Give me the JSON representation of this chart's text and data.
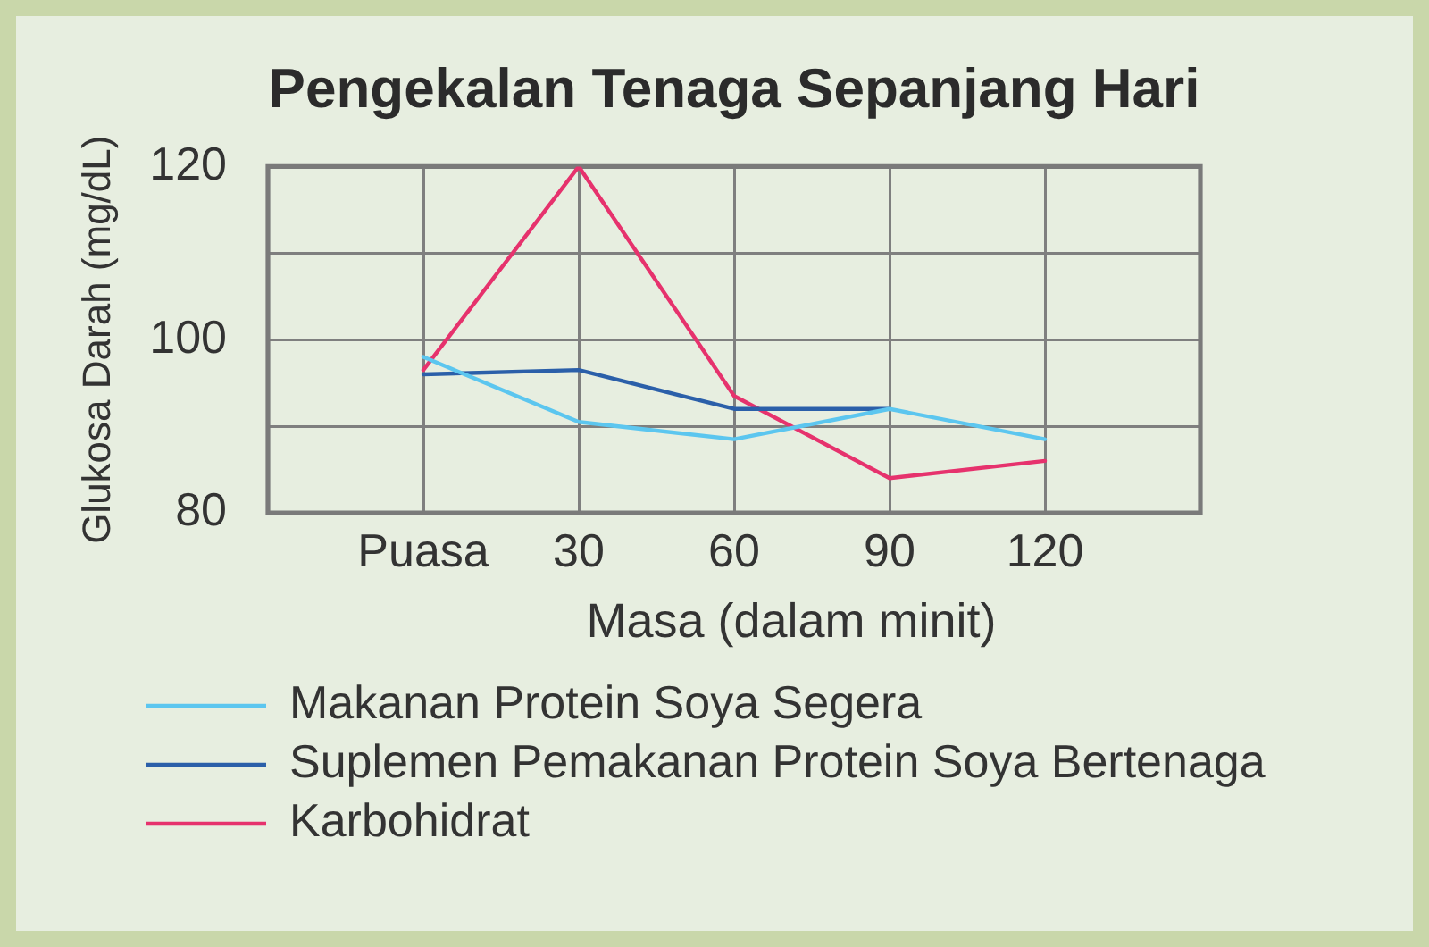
{
  "chart_data": {
    "type": "line",
    "title": "Pengekalan Tenaga Sepanjang Hari",
    "xlabel": "Masa (dalam minit)",
    "ylabel": "Glukosa Darah (mg/dL)",
    "x": [
      0,
      30,
      60,
      90,
      120
    ],
    "series": [
      {
        "name": "Makanan Protein Soya Segera",
        "color": "#5cc6ef",
        "values": [
          98,
          90.5,
          88.5,
          92,
          88.5
        ]
      },
      {
        "name": "Suplemen Pemakanan Protein Soya Bertenaga",
        "color": "#2b5fa9",
        "values": [
          96,
          96.5,
          92,
          92,
          null
        ]
      },
      {
        "name": "Karbohidrat",
        "color": "#e6326d",
        "values": [
          96.5,
          120,
          93.5,
          84,
          86
        ]
      }
    ],
    "xlim": [
      -30,
      150
    ],
    "xticks": [
      {
        "value": 0,
        "label": "Puasa"
      },
      30,
      60,
      90,
      120
    ],
    "ylim": [
      80,
      120
    ],
    "yticks": [
      80,
      {
        "value": 90,
        "label": null
      },
      100,
      {
        "value": 110,
        "label": null
      },
      120
    ],
    "grid": true,
    "legend": "bottom",
    "marker": "none",
    "line_style": "solid"
  }
}
